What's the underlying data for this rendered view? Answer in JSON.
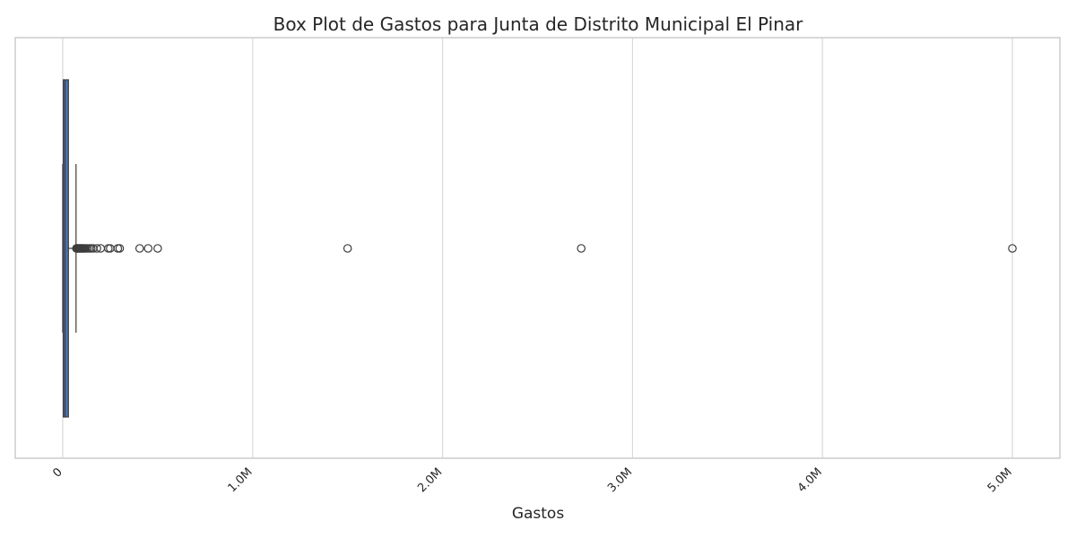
{
  "chart_data": {
    "type": "box",
    "orientation": "horizontal",
    "title": "Box Plot de Gastos para Junta de Distrito Municipal El Pinar",
    "xlabel": "Gastos",
    "ylabel": "",
    "xlim": [
      -250000,
      5250000
    ],
    "xticks": [
      0,
      1000000,
      2000000,
      3000000,
      4000000,
      5000000
    ],
    "xtick_labels": [
      "0",
      "1.0M",
      "2.0M",
      "3.0M",
      "4.0M",
      "5.0M"
    ],
    "grid": true,
    "legend": "none",
    "box": {
      "min": 0,
      "q1": 3000,
      "median": 12000,
      "q3": 30000,
      "max": 70000,
      "color": "#4c72b0"
    },
    "outliers": [
      72000,
      76000,
      80000,
      84000,
      88000,
      92000,
      96000,
      100000,
      105000,
      110000,
      115000,
      120000,
      130000,
      140000,
      150000,
      160000,
      180000,
      200000,
      240000,
      250000,
      290000,
      300000,
      405000,
      450000,
      500000,
      1500000,
      2730000,
      5000000
    ]
  }
}
